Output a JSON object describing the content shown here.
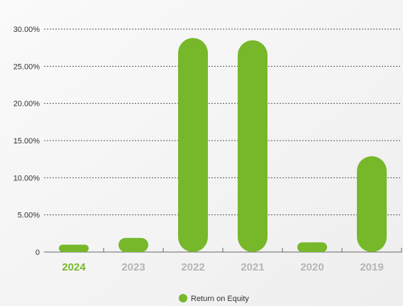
{
  "chart_data": {
    "type": "bar",
    "categories": [
      "2024",
      "2023",
      "2022",
      "2021",
      "2020",
      "2019"
    ],
    "series": [
      {
        "name": "Return on Equity",
        "values": [
          0.99,
          1.9,
          28.8,
          28.5,
          1.3,
          12.9
        ]
      }
    ],
    "yticks": [
      "0",
      "5.00%",
      "10.00%",
      "15.00%",
      "20.00%",
      "25.00%",
      "30.00%"
    ],
    "ylim": [
      0,
      30
    ],
    "grid": true,
    "highlighted_category": "2024",
    "legend_position": "bottom-center",
    "colors": {
      "bar": "#77b82a",
      "highlight_label": "#77b82a",
      "category_label": "#b5b5b5",
      "grid": "#555555",
      "background": "#f7f7f7"
    }
  }
}
